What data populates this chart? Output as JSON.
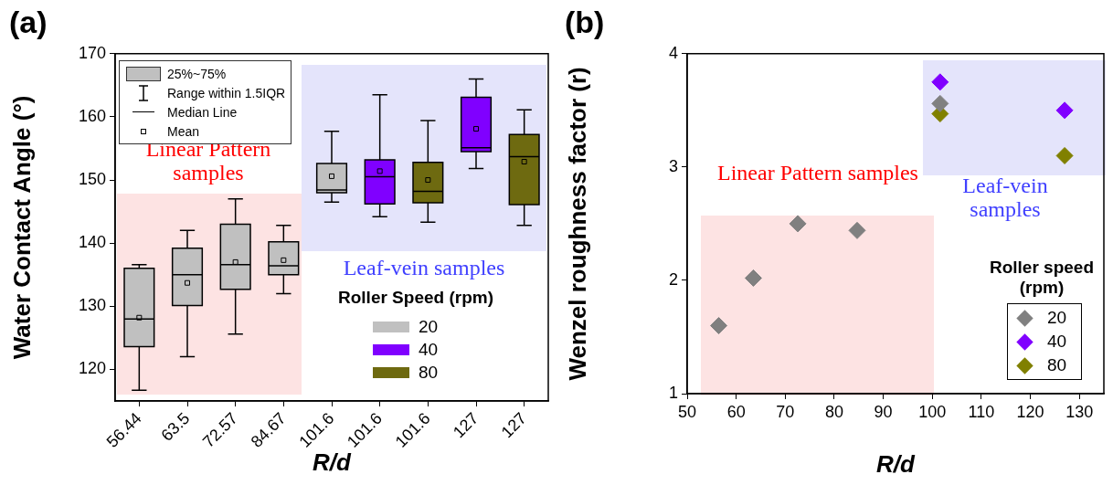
{
  "chart_data": [
    {
      "type": "box",
      "title": "(a)",
      "xlabel": "R/d",
      "ylabel": "Water Contact Angle (°)",
      "categories": [
        "56.44",
        "63.5",
        "72.57",
        "84.67",
        "101.6",
        "101.6",
        "101.6",
        "127",
        "127"
      ],
      "ylim": [
        115,
        170
      ],
      "yticks": [
        120,
        130,
        140,
        150,
        160,
        170
      ],
      "legend": "bottom right",
      "legend_title": "Roller Speed (rpm)",
      "series": [
        {
          "name": "20",
          "color": "#c0c0c0",
          "boxes": [
            {
              "low": 116.7,
              "q1": 123.6,
              "median": 128.0,
              "q3": 136.0,
              "high": 136.6,
              "mean": 128.2
            },
            {
              "low": 122.0,
              "q1": 130.1,
              "median": 135.0,
              "q3": 139.2,
              "high": 142.0,
              "mean": 133.7
            },
            {
              "low": 125.6,
              "q1": 132.7,
              "median": 136.6,
              "q3": 143.0,
              "high": 147.0,
              "mean": 137.0
            },
            {
              "low": 132.0,
              "q1": 135.0,
              "median": 136.4,
              "q3": 140.2,
              "high": 142.8,
              "mean": 137.3
            },
            {
              "low": 146.5,
              "q1": 148.0,
              "median": 148.4,
              "q3": 152.6,
              "high": 157.7,
              "mean": 150.6
            },
            null,
            null,
            null,
            null
          ]
        },
        {
          "name": "40",
          "color": "#8000ff",
          "boxes": [
            null,
            null,
            null,
            null,
            null,
            {
              "low": 144.2,
              "q1": 146.2,
              "median": 150.5,
              "q3": 153.2,
              "high": 163.5,
              "mean": 151.4
            },
            null,
            {
              "low": 151.8,
              "q1": 154.5,
              "median": 155.1,
              "q3": 163.1,
              "high": 166.0,
              "mean": 158.1
            },
            null
          ]
        },
        {
          "name": "80",
          "color": "#6e6a10",
          "boxes": [
            null,
            null,
            null,
            null,
            null,
            null,
            {
              "low": 143.3,
              "q1": 146.4,
              "median": 148.2,
              "q3": 152.8,
              "high": 159.4,
              "mean": 150.0
            },
            null,
            {
              "low": 142.8,
              "q1": 146.1,
              "median": 153.7,
              "q3": 157.2,
              "high": 161.1,
              "mean": 152.9
            }
          ]
        }
      ],
      "annotations": [
        "25%~75%",
        "Range within 1.5IQR",
        "Median Line",
        "Mean",
        "Linear Pattern samples",
        "Leaf-vein samples"
      ]
    },
    {
      "type": "scatter",
      "title": "(b)",
      "xlabel": "R/d",
      "ylabel": "Wenzel roughness factor (r)",
      "xlim": [
        50,
        135
      ],
      "xticks": [
        50,
        60,
        70,
        80,
        90,
        100,
        110,
        120,
        130
      ],
      "ylim": [
        1,
        4
      ],
      "yticks": [
        1,
        2,
        3,
        4
      ],
      "marker": "diamond",
      "legend": "bottom right",
      "legend_title": "Roller speed (rpm)",
      "series": [
        {
          "name": "20",
          "color": "#808080",
          "x": [
            56.44,
            63.5,
            72.57,
            84.67,
            101.6
          ],
          "values": [
            1.6,
            2.02,
            2.5,
            2.44,
            3.56
          ]
        },
        {
          "name": "40",
          "color": "#8000ff",
          "x": [
            101.6,
            127
          ],
          "values": [
            3.75,
            3.5
          ]
        },
        {
          "name": "80",
          "color": "#808000",
          "x": [
            101.6,
            127
          ],
          "values": [
            3.47,
            3.1
          ]
        }
      ],
      "annotations": [
        "Linear Pattern samples",
        "Leaf-vein samples"
      ]
    }
  ]
}
